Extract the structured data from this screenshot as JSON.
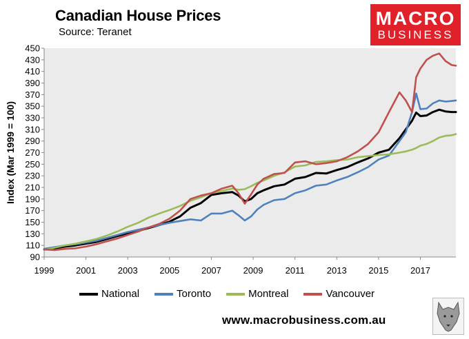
{
  "header": {
    "title": "Canadian House Prices",
    "source": "Source: Teranet"
  },
  "logo": {
    "line1": "MACRO",
    "line2": "BUSINESS"
  },
  "website": "www.macrobusiness.com.au",
  "chart_data": {
    "type": "line",
    "title": "Canadian House Prices",
    "subtitle": "Source: Teranet",
    "ylabel": "Index (Mar 1999 = 100)",
    "xlabel": "",
    "xlim": [
      1999.0,
      2018.7
    ],
    "ylim": [
      90,
      450
    ],
    "yticks": [
      90,
      110,
      130,
      150,
      170,
      190,
      210,
      230,
      250,
      270,
      290,
      310,
      330,
      350,
      370,
      390,
      410,
      430,
      450
    ],
    "xticks": [
      1999,
      2001,
      2003,
      2005,
      2007,
      2009,
      2011,
      2013,
      2015,
      2017
    ],
    "grid": false,
    "legend_position": "bottom",
    "background": "#ebebeb",
    "series": [
      {
        "name": "National",
        "color": "#000000",
        "x": [
          1999,
          1999.5,
          2000,
          2000.5,
          2001,
          2001.5,
          2002,
          2002.5,
          2003,
          2003.5,
          2004,
          2004.5,
          2005,
          2005.5,
          2006,
          2006.5,
          2007,
          2007.5,
          2008,
          2008.3,
          2008.6,
          2008.9,
          2009.2,
          2009.5,
          2010,
          2010.5,
          2011,
          2011.5,
          2012,
          2012.5,
          2013,
          2013.5,
          2014,
          2014.5,
          2015,
          2015.5,
          2016,
          2016.3,
          2016.6,
          2016.8,
          2017,
          2017.3,
          2017.6,
          2017.9,
          2018.2,
          2018.5,
          2018.7
        ],
        "values": [
          103,
          105,
          108,
          110,
          113,
          116,
          121,
          126,
          131,
          135,
          140,
          145,
          151,
          160,
          175,
          183,
          197,
          200,
          202,
          196,
          186,
          190,
          200,
          205,
          212,
          215,
          225,
          228,
          235,
          234,
          240,
          245,
          253,
          260,
          270,
          275,
          295,
          310,
          325,
          339,
          333,
          334,
          340,
          344,
          341,
          340,
          340
        ]
      },
      {
        "name": "Toronto",
        "color": "#4f81bd",
        "x": [
          1999,
          1999.5,
          2000,
          2000.5,
          2001,
          2001.5,
          2002,
          2002.5,
          2003,
          2003.5,
          2004,
          2004.5,
          2005,
          2005.5,
          2006,
          2006.5,
          2007,
          2007.5,
          2008,
          2008.3,
          2008.6,
          2008.9,
          2009.2,
          2009.5,
          2010,
          2010.5,
          2011,
          2011.5,
          2012,
          2012.5,
          2013,
          2013.5,
          2014,
          2014.5,
          2015,
          2015.5,
          2016,
          2016.3,
          2016.6,
          2016.8,
          2017,
          2017.3,
          2017.6,
          2017.9,
          2018.2,
          2018.5,
          2018.7
        ],
        "values": [
          104,
          107,
          110,
          112,
          115,
          118,
          123,
          128,
          133,
          137,
          141,
          145,
          149,
          152,
          155,
          153,
          165,
          165,
          170,
          162,
          153,
          160,
          172,
          180,
          188,
          190,
          200,
          205,
          213,
          215,
          222,
          228,
          236,
          245,
          258,
          265,
          290,
          305,
          340,
          372,
          345,
          346,
          355,
          360,
          358,
          359,
          360
        ]
      },
      {
        "name": "Montreal",
        "color": "#9bbb59",
        "x": [
          1999,
          1999.5,
          2000,
          2000.5,
          2001,
          2001.5,
          2002,
          2002.5,
          2003,
          2003.5,
          2004,
          2004.5,
          2005,
          2005.5,
          2006,
          2006.5,
          2007,
          2007.5,
          2008,
          2008.3,
          2008.6,
          2008.9,
          2009.2,
          2009.5,
          2010,
          2010.5,
          2011,
          2011.5,
          2012,
          2012.5,
          2013,
          2013.5,
          2014,
          2014.5,
          2015,
          2015.5,
          2016,
          2016.3,
          2016.6,
          2016.8,
          2017,
          2017.3,
          2017.6,
          2017.9,
          2018.2,
          2018.5,
          2018.7
        ],
        "values": [
          102,
          106,
          110,
          113,
          117,
          121,
          127,
          134,
          142,
          149,
          158,
          165,
          171,
          178,
          187,
          193,
          200,
          204,
          208,
          206,
          207,
          212,
          218,
          222,
          230,
          236,
          246,
          248,
          254,
          255,
          257,
          258,
          262,
          264,
          266,
          267,
          270,
          272,
          275,
          278,
          282,
          285,
          290,
          296,
          299,
          300,
          302
        ]
      },
      {
        "name": "Vancouver",
        "color": "#c0504d",
        "x": [
          1999,
          1999.5,
          2000,
          2000.5,
          2001,
          2001.5,
          2002,
          2002.5,
          2003,
          2003.5,
          2004,
          2004.5,
          2005,
          2005.5,
          2006,
          2006.5,
          2007,
          2007.5,
          2008,
          2008.3,
          2008.6,
          2008.9,
          2009.2,
          2009.5,
          2010,
          2010.5,
          2011,
          2011.5,
          2012,
          2012.5,
          2013,
          2013.5,
          2014,
          2014.5,
          2015,
          2015.5,
          2016,
          2016.3,
          2016.6,
          2016.8,
          2017,
          2017.3,
          2017.6,
          2017.9,
          2018.2,
          2018.5,
          2018.7
        ],
        "values": [
          103,
          102,
          104,
          105,
          108,
          112,
          117,
          122,
          128,
          134,
          141,
          147,
          156,
          170,
          190,
          196,
          200,
          208,
          213,
          200,
          182,
          198,
          215,
          225,
          233,
          235,
          253,
          255,
          250,
          252,
          255,
          262,
          272,
          285,
          305,
          340,
          374,
          360,
          340,
          400,
          415,
          430,
          437,
          441,
          428,
          421,
          420
        ]
      }
    ]
  }
}
